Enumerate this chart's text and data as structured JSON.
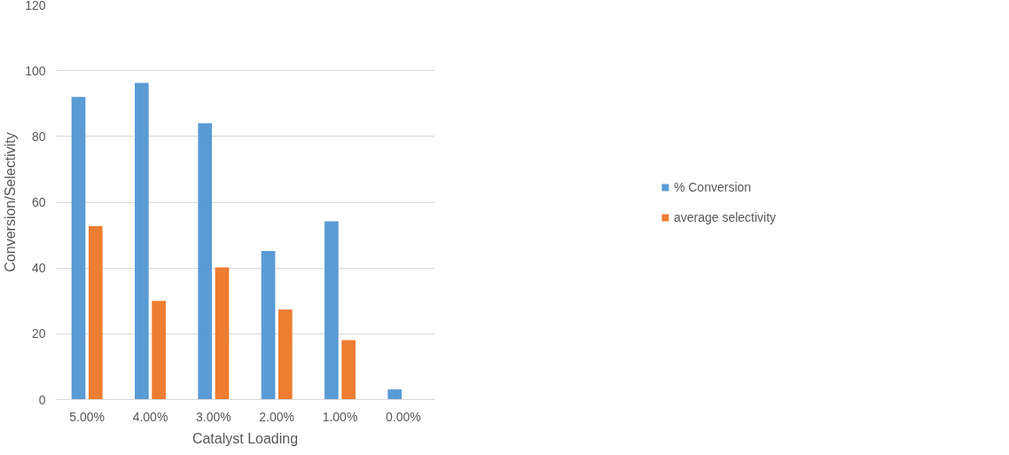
{
  "chart_data": {
    "type": "bar",
    "xlabel": "Catalyst Loading",
    "ylabel": "Conversion/Selectivity",
    "categories": [
      "5.00%",
      "4.00%",
      "3.00%",
      "2.00%",
      "1.00%",
      "0.00%"
    ],
    "series": [
      {
        "name": "% Conversion",
        "color": "#5b9bd5",
        "values": [
          92,
          96.3,
          84,
          45.2,
          54.2,
          3.1
        ]
      },
      {
        "name": "average selectivity",
        "color": "#ed7d31",
        "values": [
          52.7,
          30,
          40.2,
          27.4,
          18.1,
          0
        ]
      }
    ],
    "ylim": [
      0,
      120
    ],
    "yticks": [
      0,
      20,
      40,
      60,
      80,
      100,
      120
    ],
    "grid": "y",
    "legend": "right"
  }
}
